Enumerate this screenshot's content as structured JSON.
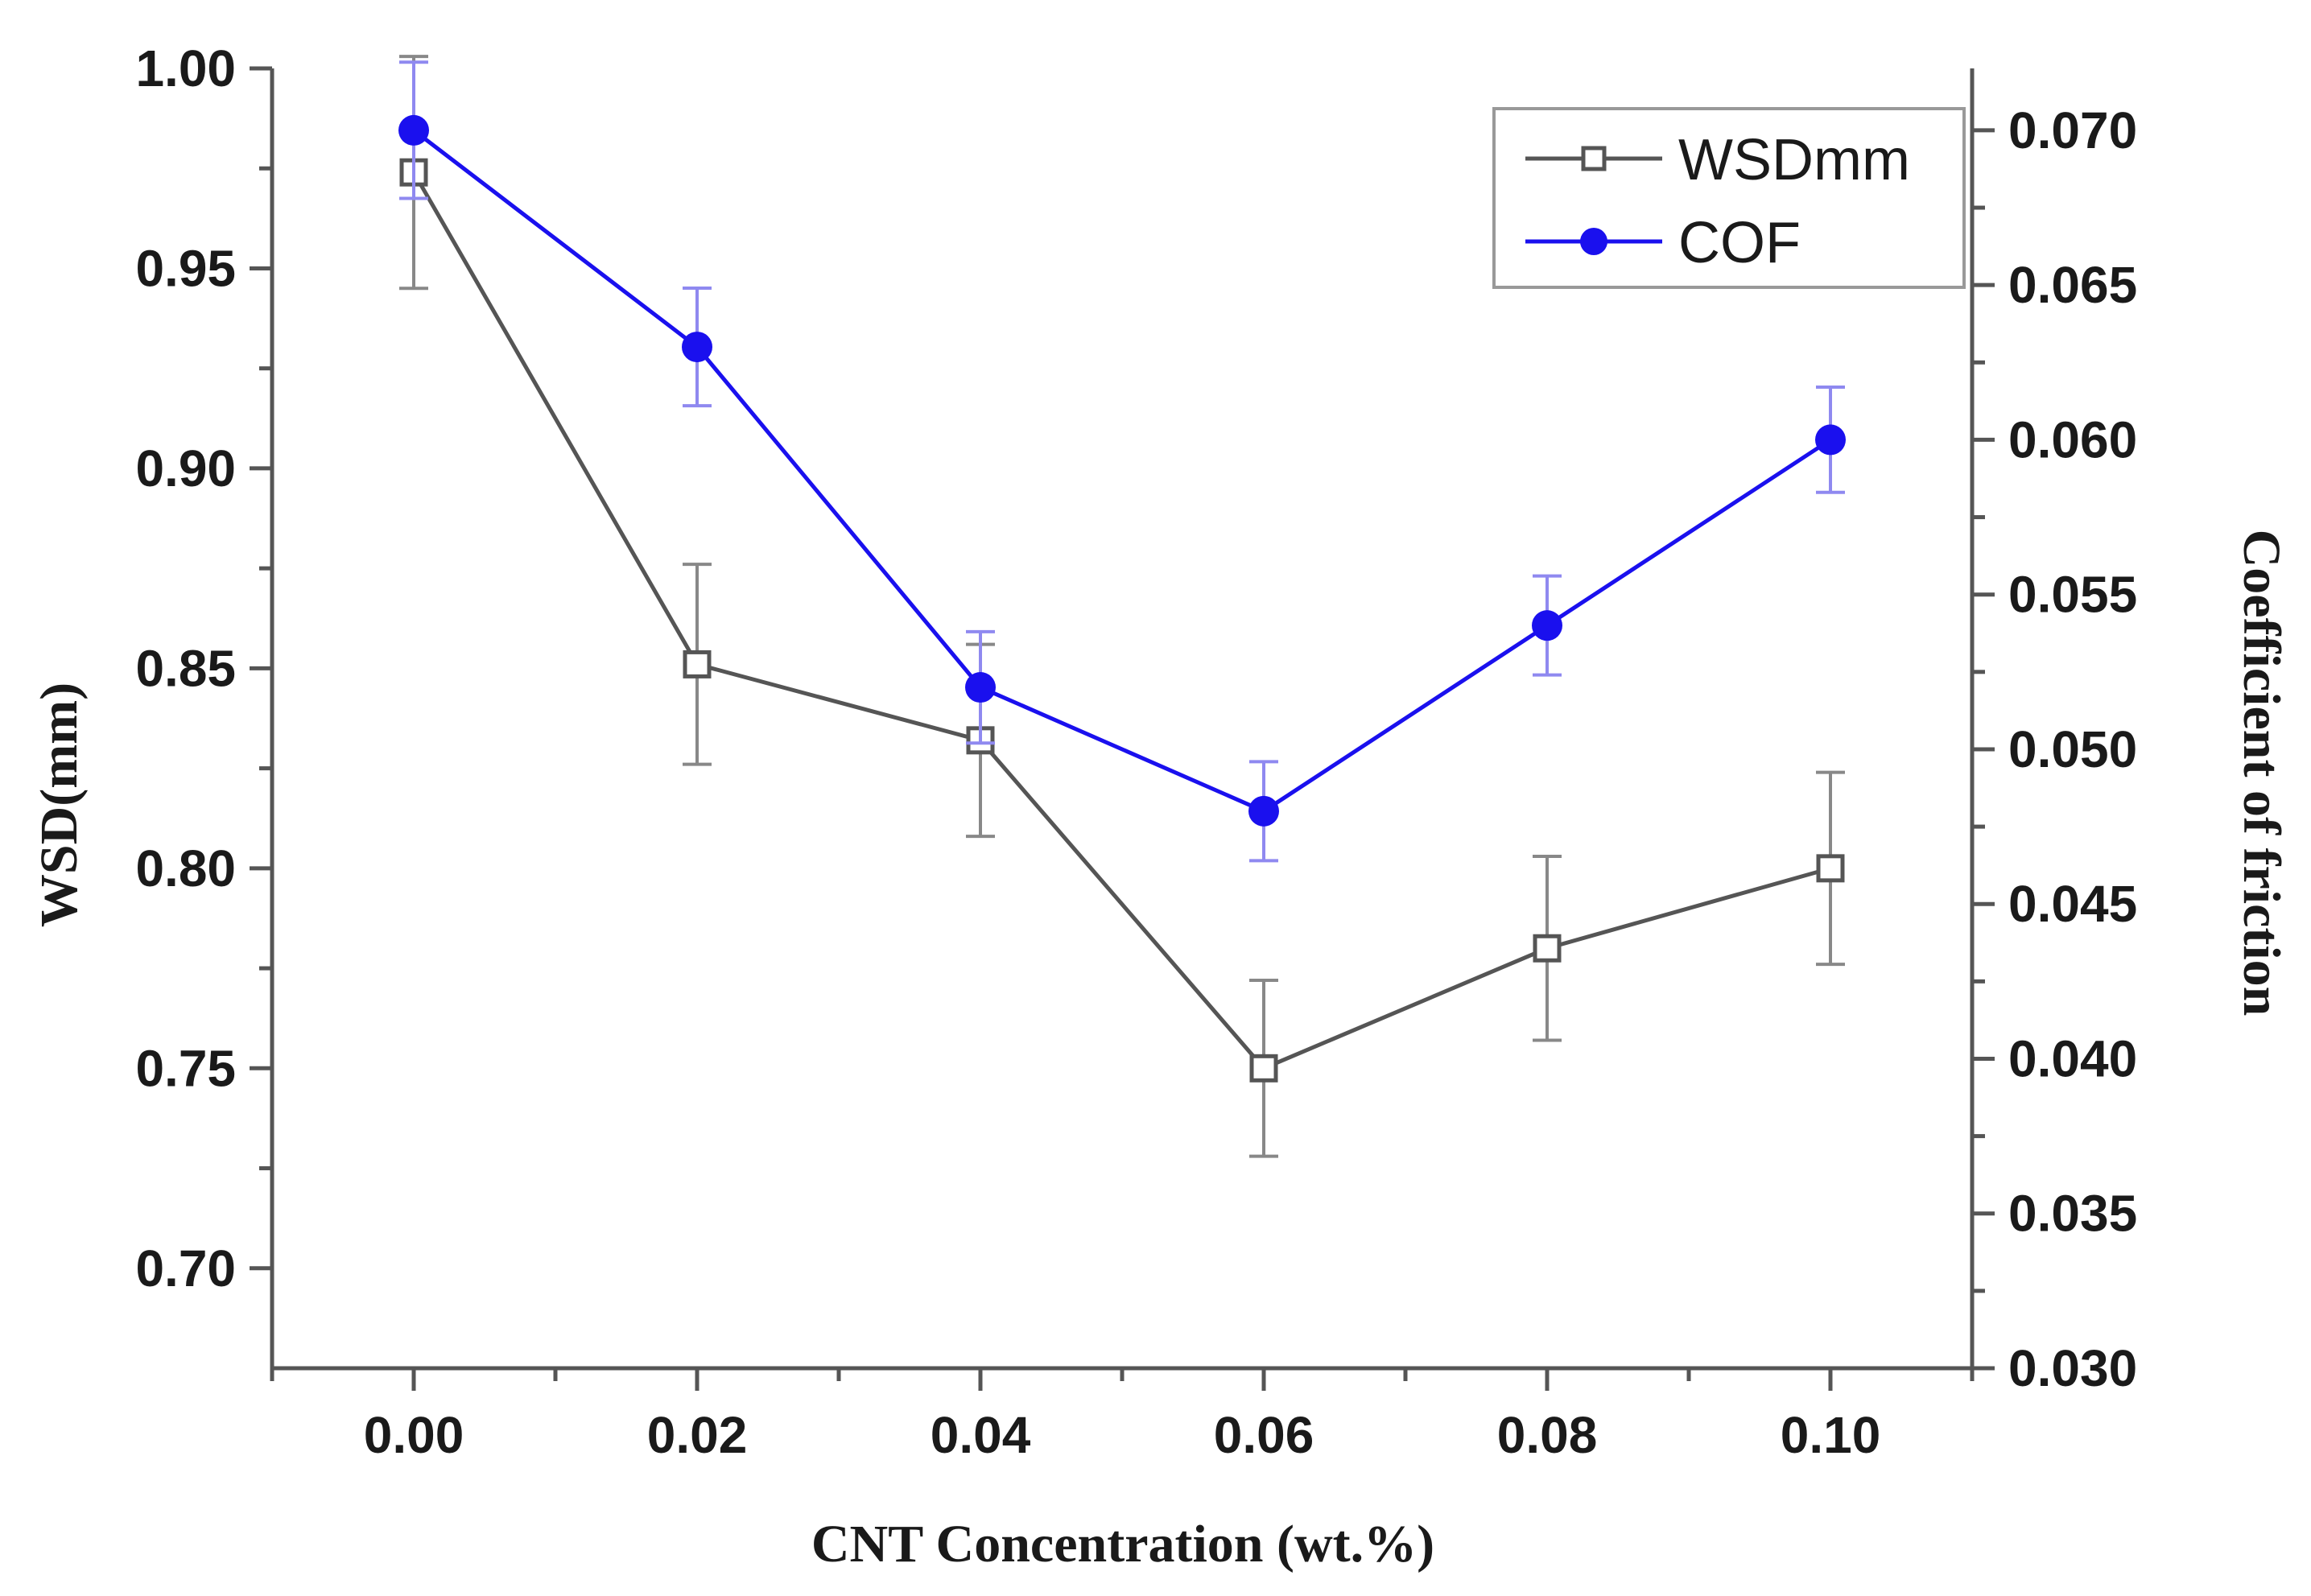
{
  "chart_data": {
    "type": "line",
    "title": "",
    "xlabel": "CNT Concentration (wt.%)",
    "ylabel": "WSD(mm)",
    "y2label": "Coefficient of friction",
    "xlim": [
      -0.01,
      0.11
    ],
    "ylim": [
      0.675,
      1.0
    ],
    "y2lim": [
      0.03,
      0.072
    ],
    "x_ticks": [
      "0.00",
      "0.02",
      "0.04",
      "0.06",
      "0.08",
      "0.10"
    ],
    "y_ticks": [
      "0.70",
      "0.75",
      "0.80",
      "0.85",
      "0.90",
      "0.95",
      "1.00"
    ],
    "y2_ticks": [
      "0.030",
      "0.035",
      "0.040",
      "0.045",
      "0.050",
      "0.055",
      "0.060",
      "0.065",
      "0.070"
    ],
    "legend_position": "top-right",
    "series": [
      {
        "name": "WSDmm",
        "axis": "left",
        "color": "#555555",
        "marker": "open-square",
        "x": [
          0.0,
          0.02,
          0.04,
          0.06,
          0.08,
          0.1
        ],
        "values": [
          0.974,
          0.851,
          0.832,
          0.75,
          0.78,
          0.8
        ],
        "errors": [
          0.029,
          0.025,
          0.024,
          0.022,
          0.023,
          0.024
        ]
      },
      {
        "name": "COF",
        "axis": "right",
        "color": "#1a10ee",
        "marker": "filled-circle",
        "x": [
          0.0,
          0.02,
          0.04,
          0.06,
          0.08,
          0.1
        ],
        "values": [
          0.07,
          0.063,
          0.052,
          0.048,
          0.054,
          0.06
        ],
        "errors": [
          0.0022,
          0.0019,
          0.0018,
          0.0016,
          0.0016,
          0.0017
        ]
      }
    ]
  }
}
